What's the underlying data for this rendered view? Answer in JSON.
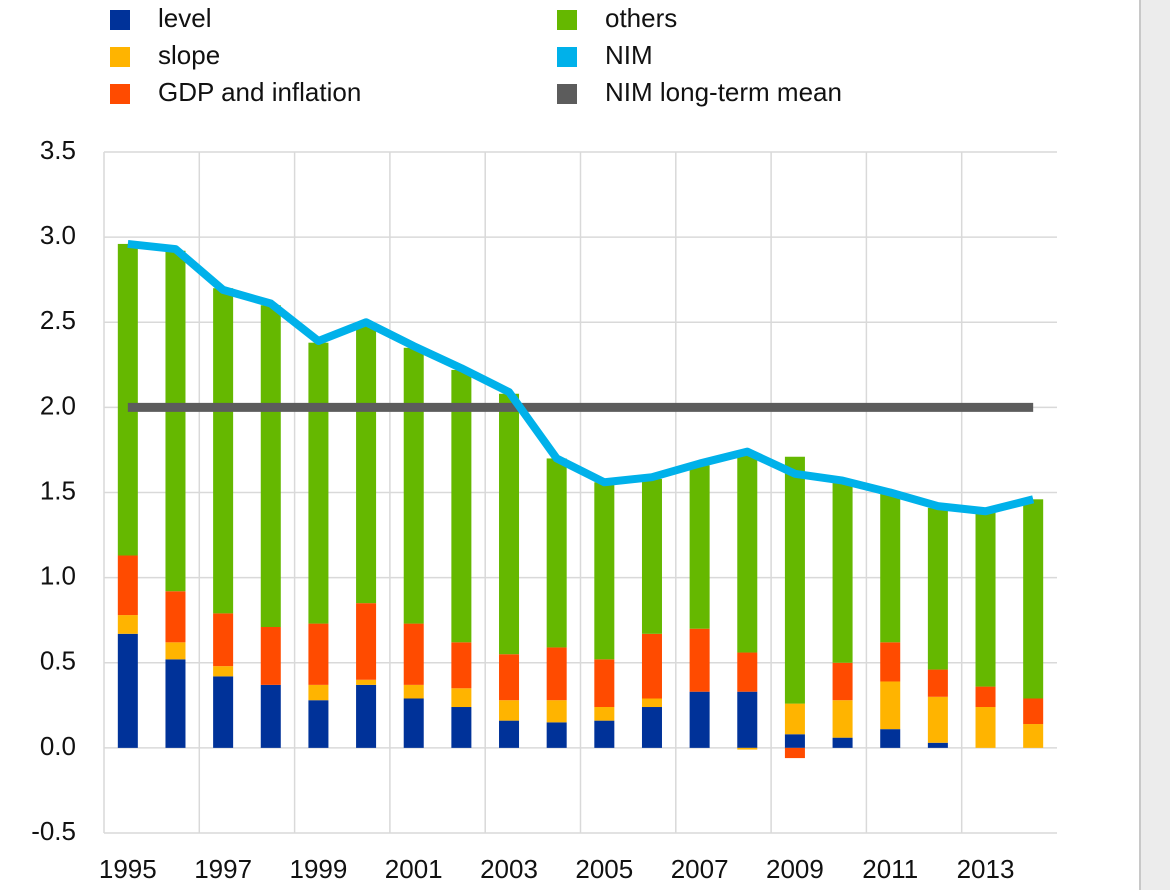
{
  "chart_data": {
    "type": "stacked-bar-line",
    "categories": [
      "1995",
      null,
      "1997",
      null,
      "1999",
      null,
      "2001",
      null,
      "2003",
      null,
      "2005",
      null,
      "2007",
      null,
      "2009",
      null,
      "2011",
      null,
      "2013",
      null
    ],
    "series": [
      {
        "name": "level",
        "type": "bar",
        "color": "#003299",
        "values": [
          0.67,
          0.52,
          0.42,
          0.37,
          0.28,
          0.37,
          0.29,
          0.24,
          0.16,
          0.15,
          0.16,
          0.24,
          0.33,
          0.33,
          0.08,
          0.06,
          0.11,
          0.03,
          0,
          0
        ]
      },
      {
        "name": "slope",
        "type": "bar",
        "color": "#ffb400",
        "values": [
          0.11,
          0.1,
          0.06,
          0,
          0.09,
          0.03,
          0.08,
          0.11,
          0.12,
          0.13,
          0.08,
          0.05,
          0,
          -0.01,
          0.18,
          0.22,
          0.28,
          0.27,
          0.24,
          0.14
        ]
      },
      {
        "name": "GDP and inflation",
        "type": "bar",
        "color": "#ff4b00",
        "values": [
          0.35,
          0.3,
          0.31,
          0.34,
          0.36,
          0.45,
          0.36,
          0.27,
          0.27,
          0.31,
          0.28,
          0.38,
          0.37,
          0.23,
          -0.06,
          0.22,
          0.23,
          0.16,
          0.12,
          0.15
        ]
      },
      {
        "name": "others",
        "type": "bar",
        "color": "#65b800",
        "values": [
          1.83,
          2.0,
          1.91,
          1.89,
          1.65,
          1.63,
          1.62,
          1.6,
          1.53,
          1.11,
          1.04,
          0.91,
          0.96,
          1.16,
          1.45,
          1.06,
          0.88,
          0.95,
          1.03,
          1.17
        ]
      },
      {
        "name": "NIM",
        "type": "line",
        "color": "#00b1ea",
        "values": [
          2.96,
          2.93,
          2.69,
          2.61,
          2.39,
          2.5,
          2.36,
          2.23,
          2.09,
          1.7,
          1.56,
          1.59,
          1.67,
          1.74,
          1.61,
          1.57,
          1.5,
          1.42,
          1.39,
          1.46
        ]
      },
      {
        "name": "NIM long-term mean",
        "type": "line",
        "color": "#5c5c5c",
        "values": [
          2,
          2,
          2,
          2,
          2,
          2,
          2,
          2,
          2,
          2,
          2,
          2,
          2,
          2,
          2,
          2,
          2,
          2,
          2,
          2
        ]
      }
    ],
    "ylim": [
      -0.5,
      3.5
    ],
    "yticks": [
      -0.5,
      {
        "value": 0,
        "label": "0.0"
      },
      0.5,
      {
        "value": 1,
        "label": "1.0"
      },
      1.5,
      {
        "value": 2,
        "label": "2.0"
      },
      2.5,
      {
        "value": 3,
        "label": "3.0"
      },
      3.5
    ],
    "grid": true,
    "legend": "top"
  }
}
